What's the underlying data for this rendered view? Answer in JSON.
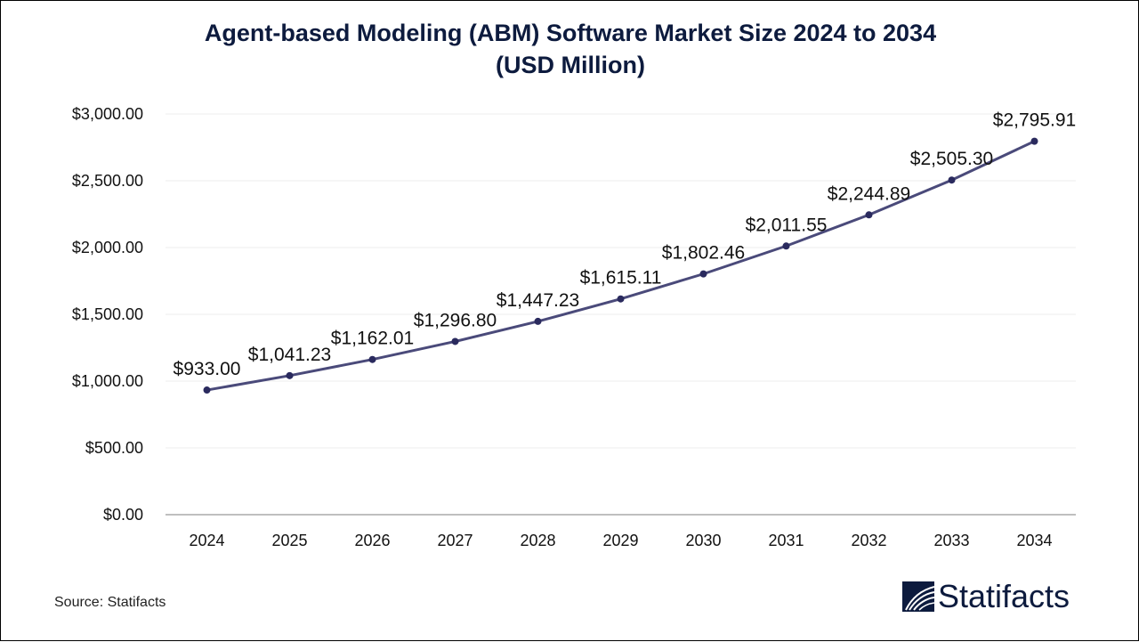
{
  "title_line1": "Agent-based Modeling (ABM) Software Market Size 2024 to 2034",
  "title_line2": "(USD Million)",
  "source": "Source: Statifacts",
  "brand": {
    "name": "Statifacts",
    "logo_icon": "statifacts-wave-logo-icon",
    "color": "#0d1b3e"
  },
  "chart_data": {
    "type": "line",
    "title": "Agent-based Modeling (ABM) Software Market Size 2024 to 2034 (USD Million)",
    "xlabel": "",
    "ylabel": "",
    "categories": [
      "2024",
      "2025",
      "2026",
      "2027",
      "2028",
      "2029",
      "2030",
      "2031",
      "2032",
      "2033",
      "2034"
    ],
    "series": [
      {
        "name": "Market Size (USD Million)",
        "color": "#4a4a7a",
        "values": [
          933.0,
          1041.23,
          1162.01,
          1296.8,
          1447.23,
          1615.11,
          1802.46,
          2011.55,
          2244.89,
          2505.3,
          2795.91
        ],
        "labels": [
          "$933.00",
          "$1,041.23",
          "$1,162.01",
          "$1,296.80",
          "$1,447.23",
          "$1,615.11",
          "$1,802.46",
          "$2,011.55",
          "$2,244.89",
          "$2,505.30",
          "$2,795.91"
        ]
      }
    ],
    "ylim": [
      0,
      3000
    ],
    "yticks": [
      0,
      500,
      1000,
      1500,
      2000,
      2500,
      3000
    ],
    "ytick_labels": [
      "$0.00",
      "$500.00",
      "$1,000.00",
      "$1,500.00",
      "$2,000.00",
      "$2,500.00",
      "$3,000.00"
    ],
    "grid": true,
    "legend": "none"
  }
}
